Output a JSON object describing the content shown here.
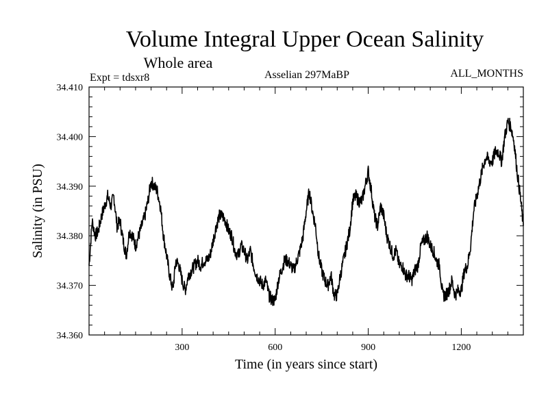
{
  "chart_data": {
    "type": "line",
    "title": "Volume Integral Upper Ocean Salinity",
    "subtitle": "Whole area",
    "experiment_label": "Expt = tdsxr8",
    "period_label": "Asselian 297MaBP",
    "months_label": "ALL_MONTHS",
    "xlabel": "Time (in years since start)",
    "ylabel": "Salinity (in PSU)",
    "xlim": [
      0,
      1400
    ],
    "ylim": [
      34.36,
      34.41
    ],
    "xticks": [
      300,
      600,
      900,
      1200
    ],
    "yticks": [
      34.36,
      34.37,
      34.38,
      34.39,
      34.4,
      34.41
    ],
    "ytick_labels": [
      "34.360",
      "34.370",
      "34.380",
      "34.390",
      "34.400",
      "34.410"
    ],
    "series": [
      {
        "name": "salinity",
        "x": [
          0,
          10,
          20,
          30,
          40,
          50,
          60,
          70,
          80,
          90,
          100,
          110,
          120,
          130,
          140,
          150,
          160,
          170,
          180,
          190,
          200,
          210,
          220,
          230,
          240,
          250,
          260,
          270,
          280,
          290,
          300,
          310,
          320,
          330,
          340,
          350,
          360,
          370,
          380,
          390,
          400,
          410,
          420,
          430,
          440,
          450,
          460,
          470,
          480,
          490,
          500,
          510,
          520,
          530,
          540,
          550,
          560,
          570,
          580,
          590,
          600,
          610,
          620,
          630,
          640,
          650,
          660,
          670,
          680,
          690,
          700,
          710,
          720,
          730,
          740,
          750,
          760,
          770,
          780,
          790,
          800,
          810,
          820,
          830,
          840,
          850,
          860,
          870,
          880,
          890,
          900,
          910,
          920,
          930,
          940,
          950,
          960,
          970,
          980,
          990,
          1000,
          1010,
          1020,
          1030,
          1040,
          1050,
          1060,
          1070,
          1080,
          1090,
          1100,
          1110,
          1120,
          1130,
          1140,
          1150,
          1160,
          1170,
          1180,
          1190,
          1200,
          1210,
          1220,
          1230,
          1240,
          1250,
          1260,
          1270,
          1280,
          1290,
          1300,
          1310,
          1320,
          1330,
          1340,
          1350,
          1360,
          1370,
          1380,
          1390,
          1400
        ],
        "values": [
          34.374,
          34.383,
          34.38,
          34.381,
          34.384,
          34.386,
          34.388,
          34.386,
          34.388,
          34.382,
          34.383,
          34.379,
          34.376,
          34.381,
          34.38,
          34.378,
          34.38,
          34.382,
          34.384,
          34.387,
          34.391,
          34.39,
          34.389,
          34.386,
          34.38,
          34.376,
          34.372,
          34.369,
          34.375,
          34.374,
          34.371,
          34.369,
          34.372,
          34.373,
          34.374,
          34.375,
          34.374,
          34.375,
          34.375,
          34.376,
          34.379,
          34.382,
          34.384,
          34.384,
          34.383,
          34.381,
          34.38,
          34.377,
          34.376,
          34.378,
          34.377,
          34.375,
          34.377,
          34.374,
          34.372,
          34.371,
          34.37,
          34.371,
          34.368,
          34.367,
          34.367,
          34.371,
          34.373,
          34.375,
          34.375,
          34.374,
          34.373,
          34.375,
          34.377,
          34.38,
          34.385,
          34.389,
          34.385,
          34.382,
          34.376,
          34.373,
          34.371,
          34.37,
          34.372,
          34.368,
          34.368,
          34.372,
          34.375,
          34.378,
          34.381,
          34.387,
          34.388,
          34.387,
          34.387,
          34.39,
          34.393,
          34.389,
          34.384,
          34.382,
          34.386,
          34.384,
          34.38,
          34.378,
          34.376,
          34.377,
          34.374,
          34.374,
          34.372,
          34.372,
          34.371,
          34.373,
          34.374,
          34.378,
          34.379,
          34.38,
          34.378,
          34.377,
          34.375,
          34.374,
          34.368,
          34.368,
          34.369,
          34.371,
          34.368,
          34.369,
          34.369,
          34.373,
          34.374,
          34.378,
          34.385,
          34.388,
          34.391,
          34.394,
          34.396,
          34.395,
          34.395,
          34.397,
          34.397,
          34.395,
          34.4,
          34.403,
          34.402,
          34.399,
          34.393,
          34.388,
          34.382
        ]
      }
    ]
  }
}
